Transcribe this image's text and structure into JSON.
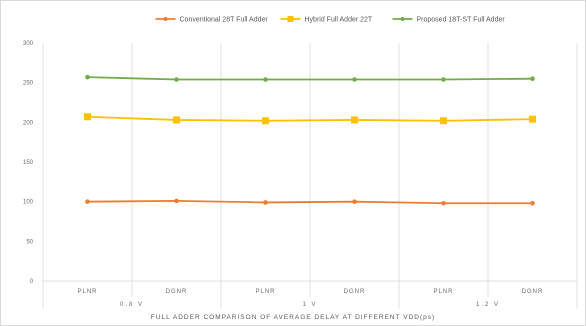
{
  "chart_data": {
    "type": "line",
    "title": "",
    "xlabel": "FULL ADDER COMPARISON OF AVERAGE DELAY AT DIFFERENT VDD(ps)",
    "ylabel": "",
    "ylim": [
      0,
      300
    ],
    "y_ticks": [
      "0",
      "50",
      "100",
      "150",
      "200",
      "250",
      "300"
    ],
    "categories": [
      "PLNR",
      "DGNR",
      "PLNR",
      "DGNR",
      "PLNR",
      "DGNR"
    ],
    "groups": [
      {
        "label": "0.8 V",
        "span": [
          0,
          1
        ]
      },
      {
        "label": "1 V",
        "span": [
          2,
          3
        ]
      },
      {
        "label": "1.2 V",
        "span": [
          4,
          5
        ]
      }
    ],
    "grid": "vertical group separators",
    "legend_position": "top",
    "series": [
      {
        "name": "Conventional 28T Full Adder",
        "color": "#ed7d31",
        "values": [
          100,
          101,
          99,
          100,
          98,
          98
        ]
      },
      {
        "name": "Hybrid Full Adder 22T",
        "color": "#ffc000",
        "values": [
          207,
          203,
          202,
          203,
          202,
          204
        ]
      },
      {
        "name": "Proposed 18T-ST Full Adder",
        "color": "#70ad47",
        "values": [
          257,
          254,
          254,
          254,
          254,
          255
        ]
      }
    ]
  }
}
